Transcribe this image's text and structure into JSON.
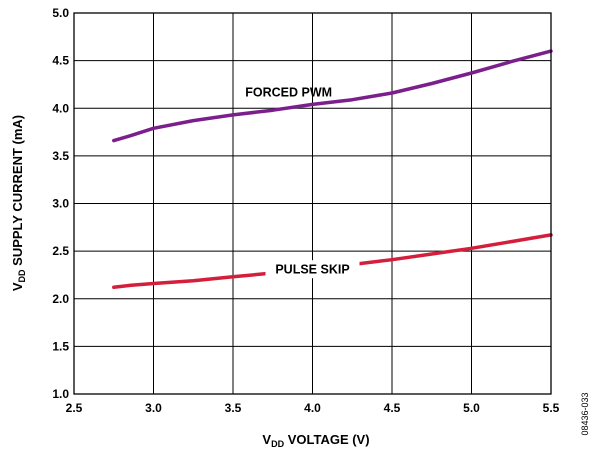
{
  "chart_data": {
    "type": "line",
    "xlabel_prefix": "V",
    "xlabel_sub": "DD",
    "xlabel_rest": " VOLTAGE (V)",
    "ylabel_prefix": "V",
    "ylabel_sub": "DD",
    "ylabel_rest": " SUPPLY CURRENT (mA)",
    "xlim": [
      2.5,
      5.5
    ],
    "ylim": [
      1.0,
      5.0
    ],
    "x_ticks": [
      "2.5",
      "3.0",
      "3.5",
      "4.0",
      "4.5",
      "5.0",
      "5.5"
    ],
    "y_ticks": [
      "1.0",
      "1.5",
      "2.0",
      "2.5",
      "3.0",
      "3.5",
      "4.0",
      "4.5",
      "5.0"
    ],
    "grid": true,
    "series": [
      {
        "name": "FORCED PWM",
        "color": "#7b1f8c",
        "x": [
          2.75,
          2.85,
          3.0,
          3.25,
          3.5,
          3.75,
          4.0,
          4.25,
          4.5,
          4.75,
          5.0,
          5.25,
          5.5
        ],
        "y": [
          3.66,
          3.71,
          3.79,
          3.87,
          3.93,
          3.98,
          4.04,
          4.09,
          4.16,
          4.26,
          4.37,
          4.49,
          4.6
        ]
      },
      {
        "name": "PULSE SKIP",
        "color": "#d41e3c",
        "x": [
          2.75,
          2.85,
          3.0,
          3.25,
          3.5,
          3.75,
          4.0,
          4.25,
          4.5,
          4.75,
          5.0,
          5.25,
          5.5
        ],
        "y": [
          2.12,
          2.14,
          2.16,
          2.19,
          2.23,
          2.27,
          2.31,
          2.36,
          2.41,
          2.47,
          2.53,
          2.6,
          2.67
        ]
      }
    ],
    "figure_id": "08436-033"
  }
}
